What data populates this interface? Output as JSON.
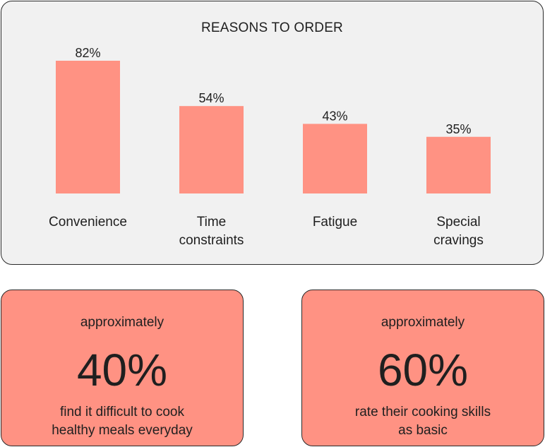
{
  "colors": {
    "bar": "#ff9283",
    "card_bg": "#f1f1f1",
    "stat_bg": "#ff9283",
    "text": "#1f1f1f"
  },
  "chart_data": {
    "type": "bar",
    "title": "REASONS TO ORDER",
    "categories": [
      [
        "Convenience"
      ],
      [
        "Time",
        "constraints"
      ],
      [
        "Fatigue"
      ],
      [
        "Special",
        "cravings"
      ]
    ],
    "values": [
      82,
      54,
      43,
      35
    ],
    "value_labels": [
      "82%",
      "54%",
      "43%",
      "35%"
    ],
    "ylim": [
      0,
      100
    ],
    "grid": false,
    "legend": "none"
  },
  "stats": [
    {
      "prefix": "approximately",
      "value": "40%",
      "description_lines": [
        "find it difficult to cook",
        "healthy meals everyday"
      ]
    },
    {
      "prefix": "approximately",
      "value": "60%",
      "description_lines": [
        "rate their cooking skills",
        "as basic"
      ]
    }
  ]
}
